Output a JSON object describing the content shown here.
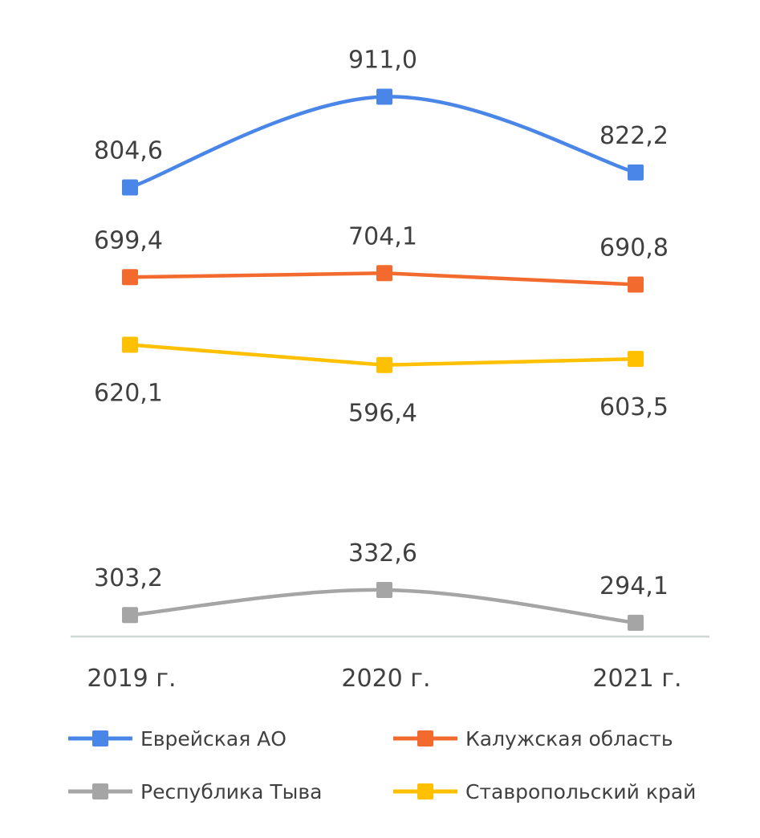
{
  "chart_data": {
    "type": "line",
    "title": "",
    "xlabel": "",
    "ylabel": "",
    "categories": [
      "2019 г.",
      "2020 г.",
      "2021 г."
    ],
    "ylim": [
      278,
      935
    ],
    "grid": false,
    "legend_position": "bottom",
    "series": [
      {
        "name": "Еврейская АО",
        "color": "#4a86e8",
        "values": [
          804.6,
          911.0,
          822.2
        ],
        "labels": [
          "804,6",
          "911,0",
          "822,2"
        ],
        "label_position": "above",
        "smooth": true
      },
      {
        "name": "Калужская область",
        "color": "#f26a2e",
        "values": [
          699.4,
          704.1,
          690.8
        ],
        "labels": [
          "699,4",
          "704,1",
          "690,8"
        ],
        "label_position": "above",
        "smooth": false
      },
      {
        "name": "Ставропольский край",
        "color": "#ffc000",
        "values": [
          620.1,
          596.4,
          603.5
        ],
        "labels": [
          "620,1",
          "596,4",
          "603,5"
        ],
        "label_position": "below",
        "smooth": false
      },
      {
        "name": "Республика Тыва",
        "color": "#a5a5a5",
        "values": [
          303.2,
          332.6,
          294.1
        ],
        "labels": [
          "303,2",
          "332,6",
          "294,1"
        ],
        "label_position": "above",
        "smooth": true
      }
    ],
    "legend_order": [
      "Еврейская АО",
      "Калужская область",
      "Республика Тыва",
      "Ставропольский край"
    ]
  }
}
